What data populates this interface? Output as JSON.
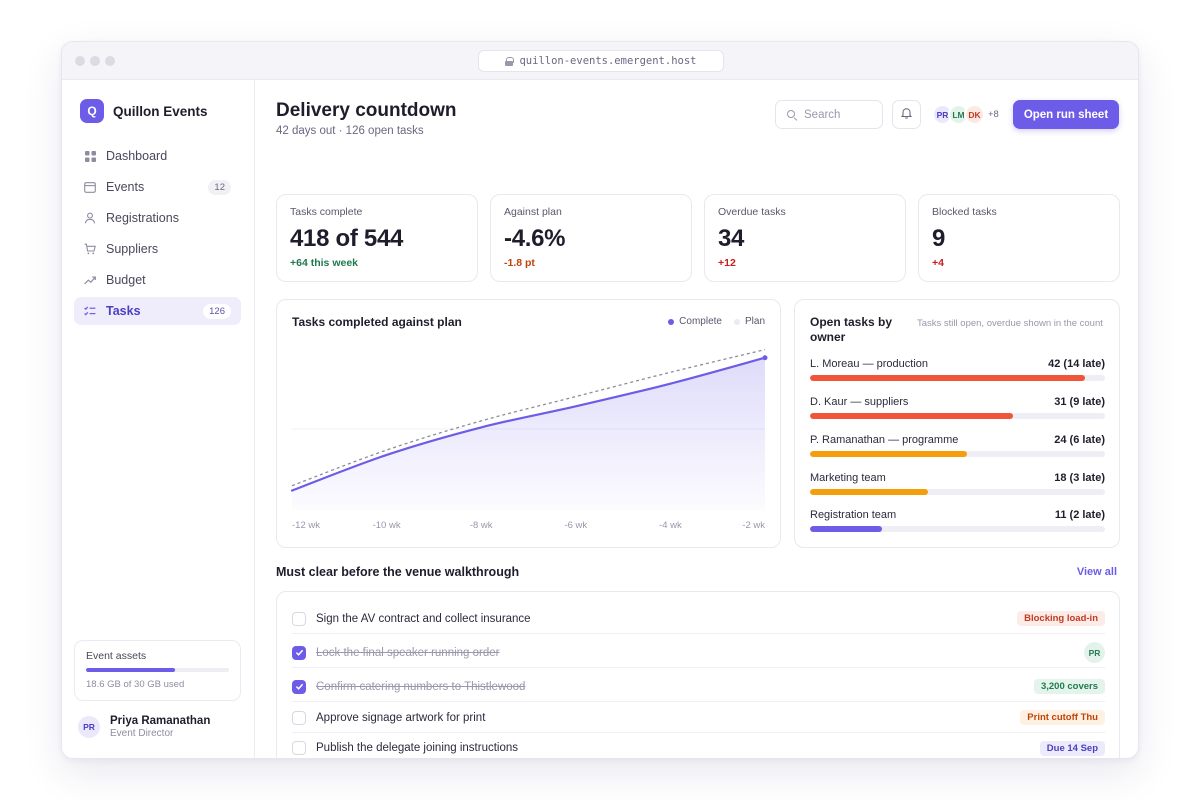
{
  "browser": {
    "url": "quillon-events.emergent.host"
  },
  "brand": {
    "logo_letter": "Q",
    "name": "Quillon Events",
    "accent": "#6c5ce7"
  },
  "sidebar": {
    "items": [
      {
        "label": "Dashboard",
        "icon": "grid-icon",
        "badge": null,
        "active": false
      },
      {
        "label": "Events",
        "icon": "calendar-icon",
        "badge": "12",
        "active": false
      },
      {
        "label": "Registrations",
        "icon": "person-icon",
        "badge": null,
        "active": false
      },
      {
        "label": "Suppliers",
        "icon": "cart-icon",
        "badge": null,
        "active": false
      },
      {
        "label": "Budget",
        "icon": "trend-icon",
        "badge": null,
        "active": false
      },
      {
        "label": "Tasks",
        "icon": "checklist-icon",
        "badge": "126",
        "active": true
      }
    ],
    "assets": {
      "title": "Event assets",
      "used_gb": 18.6,
      "total_gb": 30,
      "meta": "18.6 GB of 30 GB used"
    },
    "user": {
      "initials": "PR",
      "name": "Priya Ramanathan",
      "role": "Event Director"
    }
  },
  "header": {
    "title": "Delivery countdown",
    "subtitle": "42 days out · 126 open tasks",
    "search_placeholder": "Search",
    "avatars": [
      {
        "initials": "PR",
        "bg": "#ebe8fb",
        "fg": "#4b3fc2"
      },
      {
        "initials": "LM",
        "bg": "#e2f3ea",
        "fg": "#2a7a55"
      },
      {
        "initials": "DK",
        "bg": "#fde9e4",
        "fg": "#c23b22"
      }
    ],
    "avatars_more": "+8",
    "primary_button": "Open run sheet"
  },
  "stats": [
    {
      "label": "Tasks complete",
      "value": "418 of 544",
      "delta": "+64 this week",
      "delta_color": "#1f7a4d"
    },
    {
      "label": "Against plan",
      "value": "-4.6%",
      "delta": "-1.8 pt",
      "delta_color": "#c2410c"
    },
    {
      "label": "Overdue tasks",
      "value": "34",
      "delta": "+12",
      "delta_color": "#c81e1e"
    },
    {
      "label": "Blocked tasks",
      "value": "9",
      "delta": "+4",
      "delta_color": "#c81e1e"
    }
  ],
  "chart_data": {
    "type": "line",
    "title": "Tasks completed against plan",
    "categories": [
      "-12 wk",
      "-10 wk",
      "-8 wk",
      "-6 wk",
      "-4 wk",
      "-2 wk"
    ],
    "legend_placement": "top-right",
    "series": [
      {
        "name": "Complete",
        "color": "#6c5ce7",
        "style": "solid-area",
        "values": [
          0.12,
          0.34,
          0.51,
          0.64,
          0.78,
          0.94
        ]
      },
      {
        "name": "Plan",
        "color": "#8e8b99",
        "style": "dashed",
        "values": [
          0.15,
          0.37,
          0.55,
          0.7,
          0.85,
          0.99
        ]
      }
    ],
    "grid": true
  },
  "owners": {
    "title": "Open tasks by owner",
    "note": "Tasks still open, overdue shown in the count",
    "rows": [
      {
        "label": "L. Moreau — production",
        "count": "42 (14 late)",
        "value": 42,
        "color": "#f0553a"
      },
      {
        "label": "D. Kaur — suppliers",
        "count": "31 (9 late)",
        "value": 31,
        "color": "#f0553a"
      },
      {
        "label": "P. Ramanathan — programme",
        "count": "24 (6 late)",
        "value": 24,
        "color": "#f59e0b"
      },
      {
        "label": "Marketing team",
        "count": "18 (3 late)",
        "value": 18,
        "color": "#f59e0b"
      },
      {
        "label": "Registration team",
        "count": "11 (2 late)",
        "value": 11,
        "color": "#6c5ce7"
      }
    ],
    "max": 45
  },
  "checklist": {
    "title": "Must clear before the venue walkthrough",
    "view_all": "View all",
    "items": [
      {
        "text": "Sign the AV contract and collect insurance",
        "done": false,
        "tag": "Blocking load-in",
        "tag_bg": "#fdebe8",
        "tag_fg": "#c23b22"
      },
      {
        "text": "Lock the final speaker running order",
        "done": true,
        "avatar": "PR"
      },
      {
        "text": "Confirm catering numbers to Thistlewood",
        "done": true,
        "tag": "3,200 covers",
        "tag_bg": "#e4f4ec",
        "tag_fg": "#1f7a4d"
      },
      {
        "text": "Approve signage artwork for print",
        "done": false,
        "tag": "Print cutoff Thu",
        "tag_bg": "#fef1e2",
        "tag_fg": "#c2410c"
      },
      {
        "text": "Publish the delegate joining instructions",
        "done": false,
        "tag": "Due 14 Sep",
        "tag_bg": "#ecebfc",
        "tag_fg": "#4b3fc2"
      }
    ]
  }
}
